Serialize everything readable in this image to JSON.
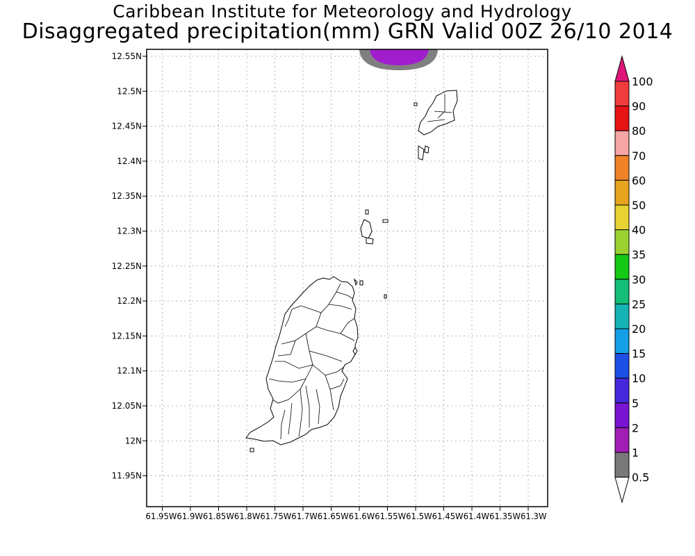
{
  "title": {
    "line1": "Caribbean Institute for Meteorology and Hydrology",
    "line2": "Disaggregated precipitation(mm) GRN Valid 00Z 26/10 2014"
  },
  "map": {
    "lat_ticks": [
      "12.55N",
      "12.5N",
      "12.45N",
      "12.4N",
      "12.35N",
      "12.3N",
      "12.25N",
      "12.2N",
      "12.15N",
      "12.1N",
      "12.05N",
      "12N",
      "11.95N"
    ],
    "lon_ticks": [
      "61.95W",
      "61.9W",
      "61.85W",
      "61.8W",
      "61.75W",
      "61.7W",
      "61.65W",
      "61.6W",
      "61.55W",
      "61.5W",
      "61.45W",
      "61.4W",
      "61.35W",
      "61.3W"
    ],
    "lon_tick_text": "61.95W61.9W61.85W61.8W61.75W61.7W61.65W61.6W61.55W61.5W61.45W61.4W61.35W61.3W",
    "grid": true
  },
  "colorbar": {
    "labels": [
      "100",
      "90",
      "80",
      "70",
      "60",
      "50",
      "40",
      "35",
      "30",
      "25",
      "20",
      "15",
      "10",
      "5",
      "2",
      "1",
      "0.5"
    ],
    "top_arrow_color": "#e0157a",
    "colors_top_to_bottom": [
      "#f03c3c",
      "#e61414",
      "#f5a5a5",
      "#f08228",
      "#e6a51e",
      "#e6d232",
      "#9bd232",
      "#14c814",
      "#14be78",
      "#14b4b4",
      "#14a0e6",
      "#1e50e6",
      "#4628dc",
      "#7814d2",
      "#a01eb4",
      "#787878"
    ],
    "bottom_arrow_color": "#ffffff"
  }
}
